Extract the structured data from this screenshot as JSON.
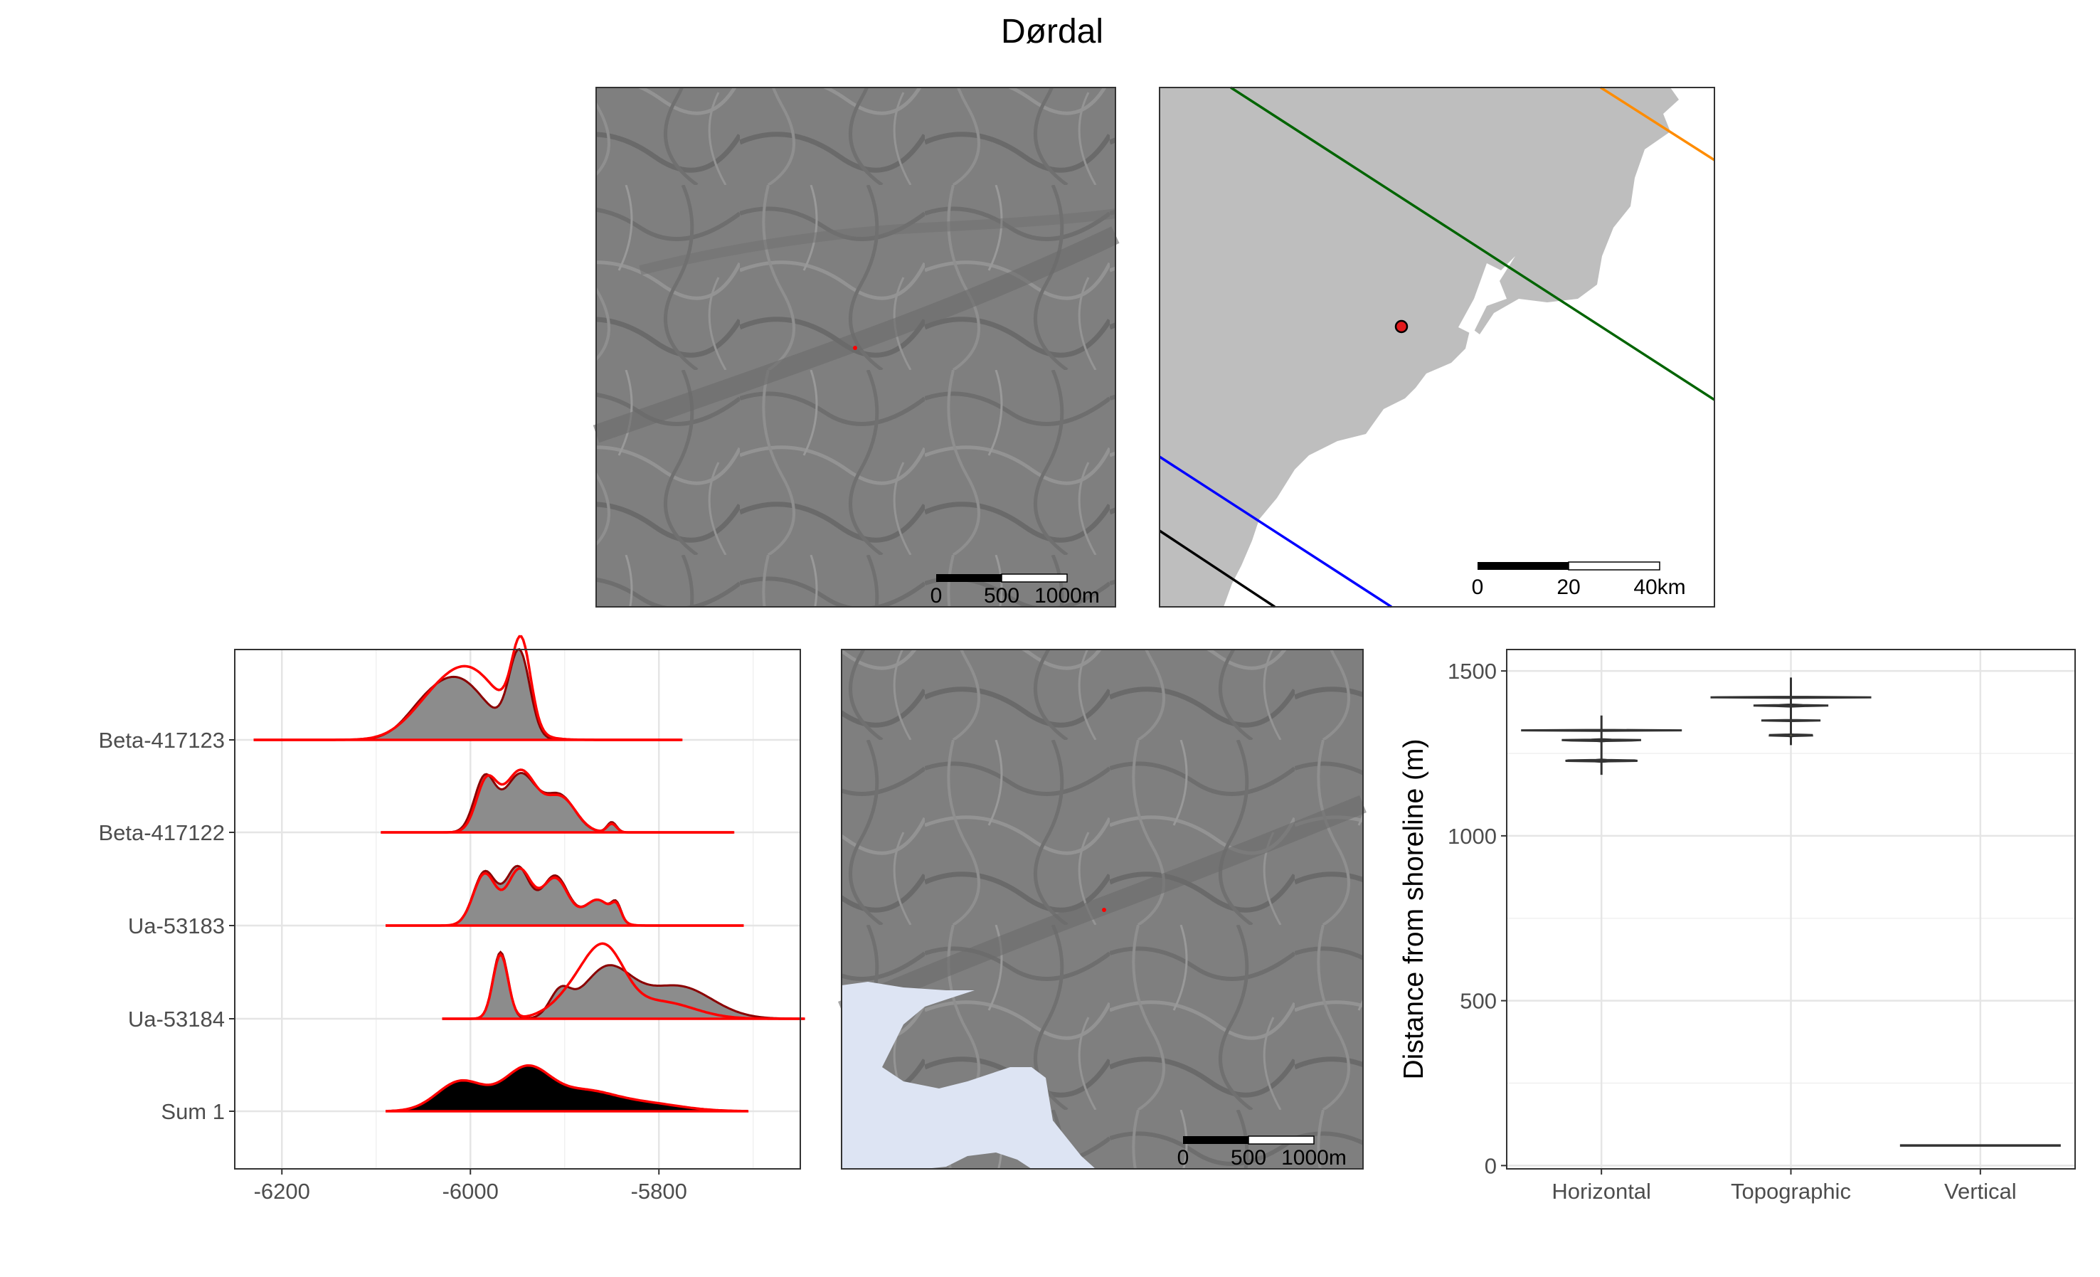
{
  "title": "Dørdal",
  "maps": {
    "hillshade_top": {
      "scalebar": [
        "0",
        "500",
        "1000m"
      ]
    },
    "overview": {
      "scalebar": [
        "0",
        "20",
        "40km"
      ],
      "line_colors": [
        "#006400",
        "#ff8c00",
        "#0000ff",
        "#000000"
      ],
      "site_color": "#e31a1c"
    },
    "hillshade_bottom": {
      "scalebar": [
        "0",
        "500",
        "1000m"
      ],
      "water_color": "#dde4f3"
    }
  },
  "chart_data": [
    {
      "type": "area",
      "name": "radiocarbon-ridgeline",
      "xlim": [
        -6250,
        -5650
      ],
      "x_ticks": [
        -6200,
        -6000,
        -5800
      ],
      "categories": [
        "Beta-417123",
        "Beta-417122",
        "Ua-53183",
        "Ua-53184",
        "Sum 1"
      ],
      "grid": true,
      "colors": {
        "outline": "#ff0000",
        "fill": "#8c8c8c",
        "sum_fill": "#000000"
      },
      "series": [
        {
          "label": "Beta-417123",
          "range": [
            -6230,
            -5775
          ],
          "peaks": [
            [
              -6055,
              0.12,
              20
            ],
            [
              -6015,
              0.72,
              32
            ],
            [
              -5948,
              0.98,
              11
            ]
          ],
          "peaks2": [
            [
              -6048,
              0.18,
              26
            ],
            [
              -6002,
              0.82,
              34
            ],
            [
              -5946,
              1.0,
              10
            ]
          ]
        },
        {
          "label": "Beta-417122",
          "range": [
            -6095,
            -5720
          ],
          "peaks": [
            [
              -5985,
              0.62,
              11
            ],
            [
              -5947,
              0.68,
              17
            ],
            [
              -5905,
              0.42,
              16
            ],
            [
              -5850,
              0.12,
              5
            ]
          ],
          "peaks2": [
            [
              -5983,
              0.58,
              11
            ],
            [
              -5947,
              0.72,
              17
            ],
            [
              -5904,
              0.4,
              16
            ],
            [
              -5850,
              0.1,
              5
            ]
          ]
        },
        {
          "label": "Ua-53183",
          "range": [
            -6090,
            -5710
          ],
          "peaks": [
            [
              -5985,
              0.62,
              12
            ],
            [
              -5950,
              0.68,
              13
            ],
            [
              -5910,
              0.58,
              14
            ],
            [
              -5865,
              0.3,
              14
            ],
            [
              -5845,
              0.18,
              5
            ]
          ],
          "peaks2": [
            [
              -5985,
              0.6,
              12
            ],
            [
              -5948,
              0.65,
              13
            ],
            [
              -5910,
              0.55,
              14
            ],
            [
              -5865,
              0.3,
              14
            ],
            [
              -5845,
              0.16,
              5
            ]
          ]
        },
        {
          "label": "Ua-53184",
          "range": [
            -6030,
            -5645
          ],
          "peaks": [
            [
              -5968,
              0.78,
              8
            ],
            [
              -5855,
              0.58,
              26
            ],
            [
              -5780,
              0.38,
              36
            ],
            [
              -5905,
              0.28,
              11
            ]
          ],
          "peaks2": [
            [
              -5968,
              0.75,
              8
            ],
            [
              -5880,
              0.4,
              26
            ],
            [
              -5855,
              0.55,
              20
            ],
            [
              -5800,
              0.2,
              36
            ]
          ]
        },
        {
          "label": "Sum 1",
          "range": [
            -6090,
            -5705
          ],
          "peaks": [
            [
              -6010,
              0.35,
              25
            ],
            [
              -5940,
              0.5,
              25
            ],
            [
              -5880,
              0.2,
              30
            ],
            [
              -5820,
              0.1,
              40
            ]
          ],
          "peaks2": [
            [
              -6010,
              0.35,
              25
            ],
            [
              -5940,
              0.5,
              25
            ],
            [
              -5880,
              0.2,
              30
            ],
            [
              -5820,
              0.1,
              40
            ]
          ]
        }
      ]
    },
    {
      "type": "violin",
      "name": "distance-from-shoreline",
      "ylabel": "Distance from shoreline (m)",
      "ylim": [
        -10,
        1565
      ],
      "y_ticks": [
        0,
        500,
        1000,
        1500
      ],
      "categories": [
        "Horizontal",
        "Topographic",
        "Vertical"
      ],
      "grid": true,
      "series": [
        {
          "label": "Horizontal",
          "color": "#7bd590",
          "min": 1185,
          "max": 1365,
          "modes": [
            [
              1290,
              11,
              1.0
            ],
            [
              1228,
              12,
              0.97
            ],
            [
              1320,
              22,
              0.28
            ]
          ]
        },
        {
          "label": "Topographic",
          "color": "#fbe679",
          "min": 1275,
          "max": 1480,
          "modes": [
            [
              1395,
              10,
              1.0
            ],
            [
              1305,
              10,
              1.0
            ],
            [
              1420,
              22,
              0.28
            ],
            [
              1350,
              18,
              0.25
            ]
          ]
        },
        {
          "label": "Vertical",
          "color": "#000000",
          "min": 61,
          "max": 61,
          "modes": []
        }
      ]
    }
  ]
}
